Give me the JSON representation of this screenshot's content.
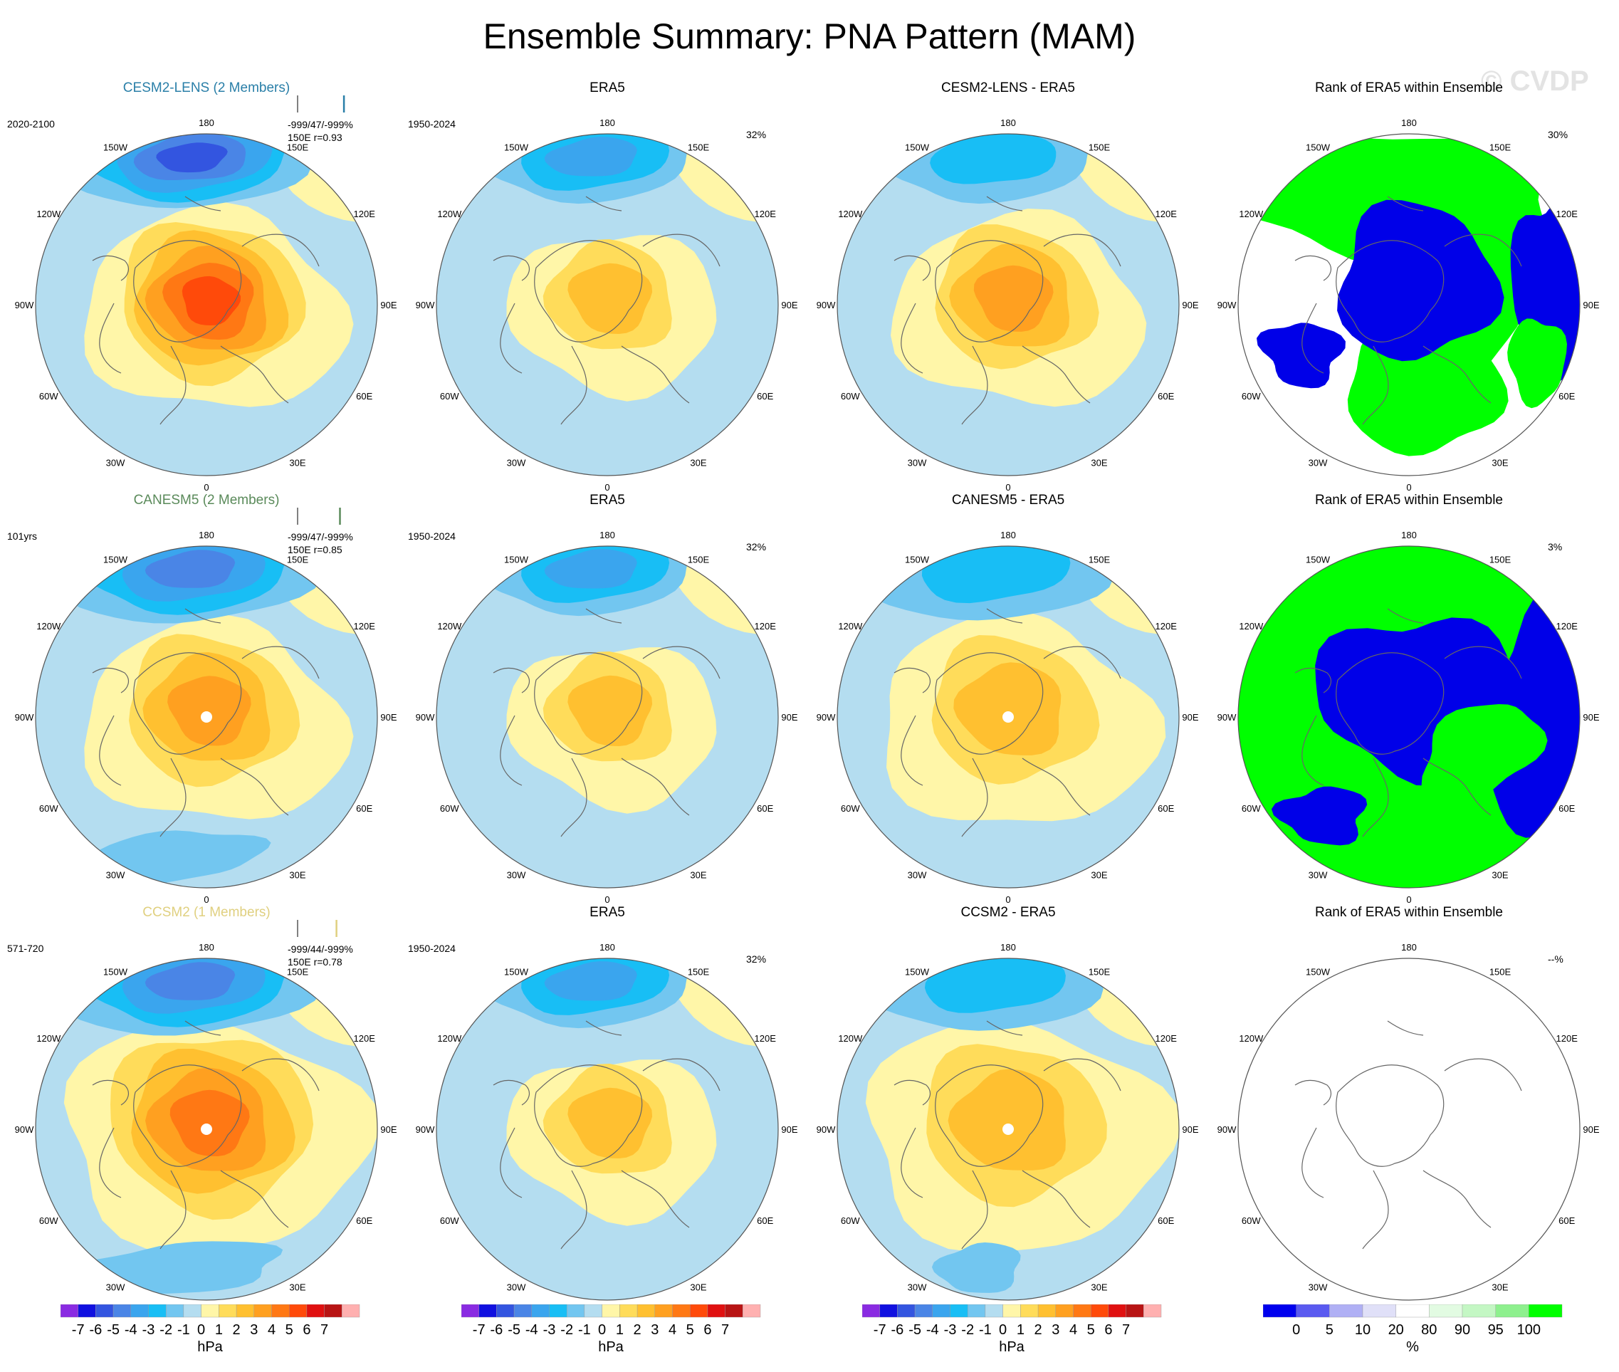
{
  "title": "Ensemble Summary: PNA Pattern (MAM)",
  "copyright": "© CVDP",
  "longitude_labels": [
    "180",
    "150E",
    "120E",
    "90E",
    "60E",
    "30E",
    "0",
    "30W",
    "60W",
    "90W",
    "120W",
    "150W"
  ],
  "colors": {
    "ocean_bg": "#b4ddf0",
    "rank_green": "#00ff00",
    "rank_blue": "#0000e8"
  },
  "chart_data": [
    {
      "type": "heatmap",
      "row": 0,
      "col": 0,
      "kind": "model",
      "title": "CESM2-LENS (2 Members)",
      "title_color": "#2a7fa8",
      "period": "2020-2100",
      "stats": "-999/47/-999%",
      "stats2": "150E r=0.93",
      "rmax": 0.93,
      "center_dot": false,
      "neg_strength": 4.6,
      "pos_strength": 5.8,
      "pos_offset": 0.05,
      "neg_spread": 1.0,
      "pos_spread": 1.0,
      "pos_shift": 0.0,
      "extra_low": 0.0
    },
    {
      "type": "heatmap",
      "row": 0,
      "col": 1,
      "kind": "obs",
      "title": "ERA5",
      "period": "1950-2024",
      "pct": "32%",
      "neg_strength": 3.1,
      "pos_strength": 2.6,
      "pos_offset": 0.0,
      "neg_spread": 0.85,
      "pos_spread": 0.8,
      "pos_shift": 0.0,
      "extra_low": 0.0,
      "center_dot": false
    },
    {
      "type": "heatmap",
      "row": 0,
      "col": 2,
      "kind": "diff",
      "title": "CESM2-LENS - ERA5",
      "neg_strength": 1.8,
      "pos_strength": 3.6,
      "pos_offset": 0.0,
      "neg_spread": 0.85,
      "pos_spread": 0.95,
      "pos_shift": 0.05,
      "extra_low": 0.0,
      "center_dot": false
    },
    {
      "type": "heatmap",
      "row": 0,
      "col": 3,
      "kind": "rank",
      "title": "Rank of ERA5 within Ensemble",
      "pct": "30%",
      "rank_variant": 0
    },
    {
      "type": "heatmap",
      "row": 1,
      "col": 0,
      "kind": "model",
      "title": "CANESM5 (2 Members)",
      "title_color": "#5a8a5a",
      "period": "101yrs",
      "stats": "-999/47/-999%",
      "stats2": "150E r=0.85",
      "rmax": 0.85,
      "center_dot": true,
      "neg_strength": 3.8,
      "pos_strength": 4.3,
      "pos_offset": 0.0,
      "neg_spread": 1.05,
      "pos_spread": 1.0,
      "pos_shift": 0.0,
      "extra_low": 1.2
    },
    {
      "type": "heatmap",
      "row": 1,
      "col": 1,
      "kind": "obs",
      "title": "ERA5",
      "period": "1950-2024",
      "pct": "32%",
      "neg_strength": 3.1,
      "pos_strength": 2.6,
      "pos_offset": 0.0,
      "neg_spread": 0.85,
      "pos_spread": 0.8,
      "pos_shift": 0.0,
      "extra_low": 0.0,
      "center_dot": false
    },
    {
      "type": "heatmap",
      "row": 1,
      "col": 2,
      "kind": "diff",
      "title": "CANESM5 - ERA5",
      "neg_strength": 1.7,
      "pos_strength": 2.6,
      "pos_offset": 0.0,
      "neg_spread": 1.0,
      "pos_spread": 1.05,
      "pos_shift": 0.0,
      "extra_low": 0.0,
      "center_dot": true
    },
    {
      "type": "heatmap",
      "row": 1,
      "col": 3,
      "kind": "rank",
      "title": "Rank of ERA5 within Ensemble",
      "pct": "3%",
      "rank_variant": 1
    },
    {
      "type": "heatmap",
      "row": 2,
      "col": 0,
      "kind": "model",
      "title": "CCSM2 (1 Members)",
      "title_color": "#e0d080",
      "period": "571-720",
      "stats": "-999/44/-999%",
      "stats2": "150E r=0.78",
      "rmax": 0.78,
      "center_dot": true,
      "neg_strength": 4.2,
      "pos_strength": 5.0,
      "pos_offset": 0.0,
      "neg_spread": 1.05,
      "pos_spread": 1.15,
      "pos_shift": 0.0,
      "extra_low": 1.5
    },
    {
      "type": "heatmap",
      "row": 2,
      "col": 1,
      "kind": "obs",
      "title": "ERA5",
      "period": "1950-2024",
      "pct": "32%",
      "neg_strength": 3.1,
      "pos_strength": 2.6,
      "pos_offset": 0.0,
      "neg_spread": 0.85,
      "pos_spread": 0.8,
      "pos_shift": 0.0,
      "extra_low": 0.0,
      "center_dot": false
    },
    {
      "type": "heatmap",
      "row": 2,
      "col": 2,
      "kind": "diff",
      "title": "CCSM2 - ERA5",
      "neg_strength": 2.3,
      "pos_strength": 3.2,
      "pos_offset": 0.0,
      "neg_spread": 0.95,
      "pos_spread": 1.15,
      "pos_shift": 0.0,
      "extra_low": 0.6,
      "center_dot": true
    },
    {
      "type": "heatmap",
      "row": 2,
      "col": 3,
      "kind": "rank",
      "title": "Rank of ERA5 within Ensemble",
      "pct": "--%",
      "rank_variant": 2
    }
  ],
  "colorbar_hpa": {
    "unit": "hPa",
    "labels": [
      "-7",
      "-6",
      "-5",
      "-4",
      "-3",
      "-2",
      "-1",
      "0",
      "1",
      "2",
      "3",
      "4",
      "5",
      "6",
      "7"
    ],
    "colors": [
      "#8a2be2",
      "#1010e0",
      "#3355e0",
      "#4a85e6",
      "#3aa5ee",
      "#18bef5",
      "#72c6f0",
      "#b4ddf0",
      "#fff6a8",
      "#ffdc5a",
      "#ffc030",
      "#ffa020",
      "#ff7814",
      "#ff4a0a",
      "#e01010",
      "#b81414",
      "#ffb0b0"
    ]
  },
  "colorbar_rank": {
    "unit": "%",
    "labels": [
      "0",
      "5",
      "10",
      "20",
      "80",
      "90",
      "95",
      "100"
    ],
    "colors": [
      "#0000ee",
      "#5a5af0",
      "#b0b0f5",
      "#e0e0f8",
      "#ffffff",
      "#e2fbe2",
      "#c4f7c4",
      "#8ef08e",
      "#00ff00"
    ]
  }
}
